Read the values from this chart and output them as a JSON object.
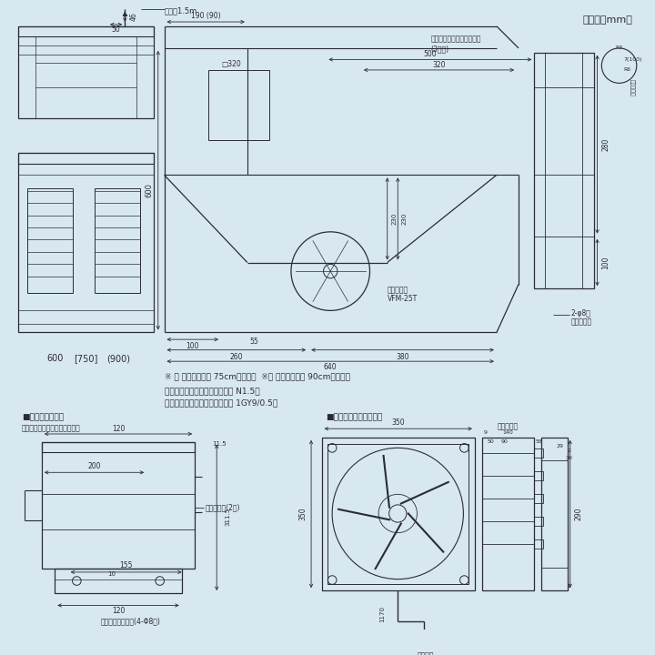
{
  "bg_color": "#d8e8f0",
  "line_color": "#2a2a3a",
  "title_unit": "（単位：mm）",
  "note1": "※ ［ ］内の寸法は 75cm巾タイプ  ※（ ）内の寸法は 90cm巾タイプ",
  "note2": "色調：ブラック塗装（マンセル N1.5）",
  "note3": "　　　ホワイト塗装（マンセル 1GY9/0.5）",
  "section1_title": "■取付寸法詳細図",
  "section1_sub": "（化粧枠を外した状態を示す）",
  "section2_title": "■同梱換気扇（不燃形）"
}
